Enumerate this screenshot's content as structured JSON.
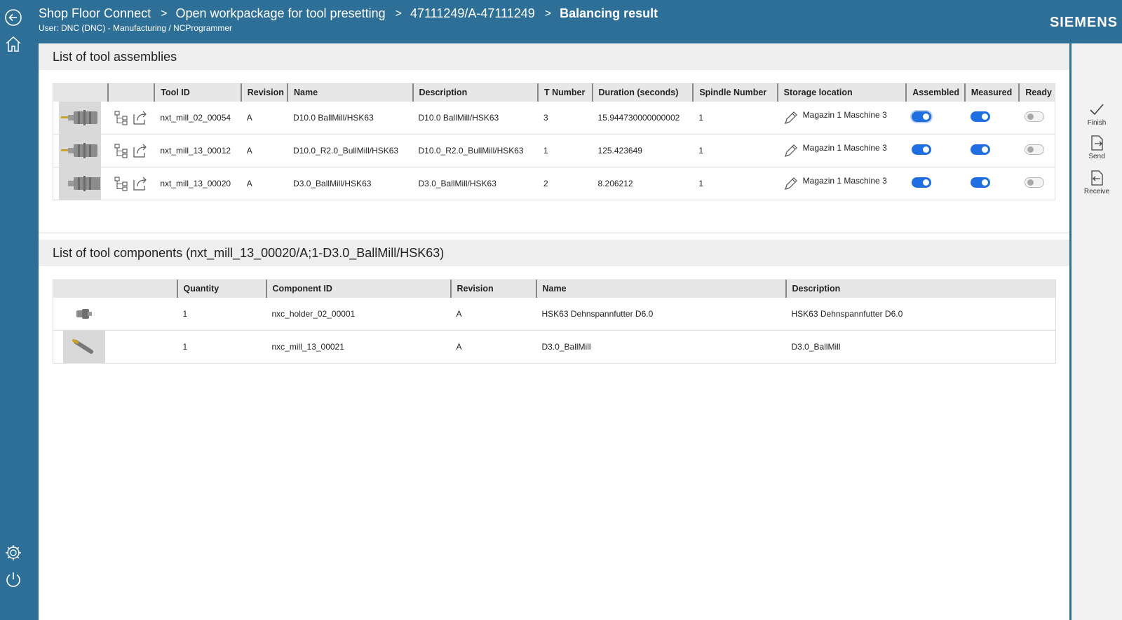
{
  "header": {
    "breadcrumbs": [
      "Shop Floor Connect",
      "Open workpackage for tool presetting",
      "47111249/A-47111249"
    ],
    "separator": ">",
    "current": "Balancing result",
    "user": "User: DNC (DNC) - Manufacturing / NCProgrammer",
    "brand": "SIEMENS"
  },
  "sidebar": {
    "top_icons": [
      "back-icon",
      "home-icon"
    ],
    "bottom_icons": [
      "gear-icon",
      "power-icon"
    ]
  },
  "assemblies": {
    "title": "List of tool assemblies",
    "columns": [
      "",
      "",
      "Tool ID",
      "Revision",
      "Name",
      "Description",
      "T Number",
      "Duration (seconds)",
      "Spindle Number",
      "Storage location",
      "Assembled",
      "Measured",
      "Ready"
    ],
    "rows": [
      {
        "tool_id": "nxt_mill_02_00054",
        "revision": "A",
        "name": "D10.0 BallMill/HSK63",
        "description": "D10.0 BallMill/HSK63",
        "t_number": "3",
        "duration": "15.944730000000002",
        "spindle": "1",
        "storage": "Magazin 1 Maschine 3",
        "assembled": true,
        "measured": true,
        "ready": false
      },
      {
        "tool_id": "nxt_mill_13_00012",
        "revision": "A",
        "name": "D10.0_R2.0_BullMill/HSK63",
        "description": "D10.0_R2.0_BullMill/HSK63",
        "t_number": "1",
        "duration": "125.423649",
        "spindle": "1",
        "storage": "Magazin 1 Maschine 3",
        "assembled": true,
        "measured": true,
        "ready": false
      },
      {
        "tool_id": "nxt_mill_13_00020",
        "revision": "A",
        "name": "D3.0_BallMill/HSK63",
        "description": "D3.0_BallMill/HSK63",
        "t_number": "2",
        "duration": "8.206212",
        "spindle": "1",
        "storage": "Magazin 1 Maschine 3",
        "assembled": true,
        "measured": true,
        "ready": false
      }
    ]
  },
  "components": {
    "title": "List of tool components (nxt_mill_13_00020/A;1-D3.0_BallMill/HSK63)",
    "columns": [
      "",
      "Quantity",
      "Component ID",
      "Revision",
      "Name",
      "Description"
    ],
    "rows": [
      {
        "quantity": "1",
        "component_id": "nxc_holder_02_00001",
        "revision": "A",
        "name": "HSK63 Dehnspannfutter D6.0",
        "description": "HSK63 Dehnspannfutter D6.0"
      },
      {
        "quantity": "1",
        "component_id": "nxc_mill_13_00021",
        "revision": "A",
        "name": "D3.0_BallMill",
        "description": "D3.0_BallMill"
      }
    ]
  },
  "actionbar": {
    "finish": "Finish",
    "send": "Send",
    "receive": "Receive"
  },
  "colors": {
    "brand_blue": "#2e6f97",
    "toggle_on": "#1f6fe0"
  }
}
